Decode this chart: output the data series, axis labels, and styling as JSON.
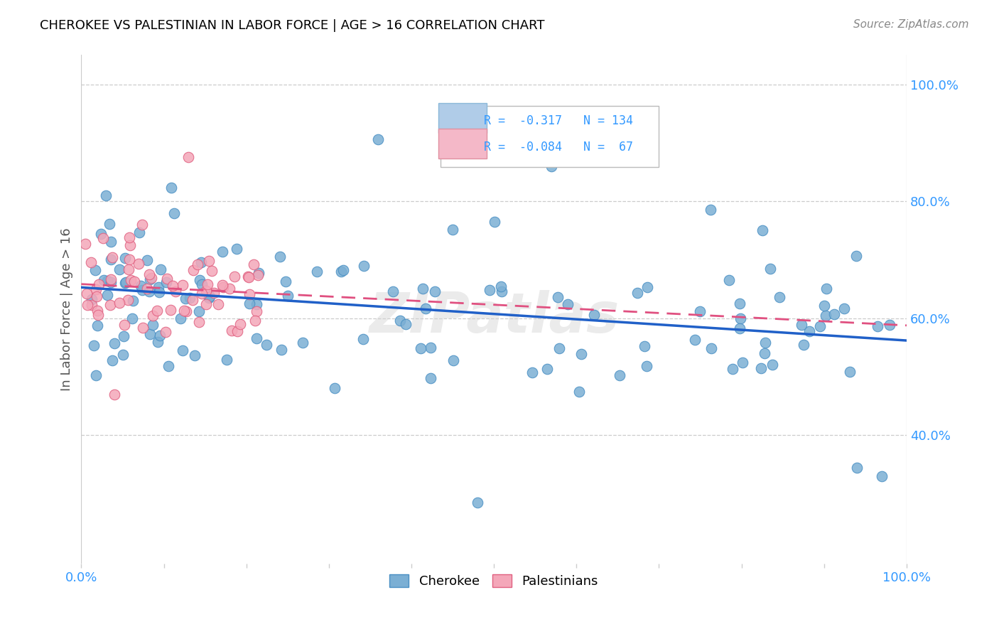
{
  "title": "CHEROKEE VS PALESTINIAN IN LABOR FORCE | AGE > 16 CORRELATION CHART",
  "source": "Source: ZipAtlas.com",
  "ylabel": "In Labor Force | Age > 16",
  "xlim": [
    0.0,
    1.0
  ],
  "ylim": [
    0.18,
    1.05
  ],
  "cherokee_color": "#7bafd4",
  "cherokee_edge_color": "#4a90c4",
  "palestinian_color": "#f4a7b9",
  "palestinian_edge_color": "#e06080",
  "cherokee_line_color": "#2060c8",
  "palestinian_line_color": "#e05080",
  "legend_box_cherokee": "#b0cce8",
  "legend_box_cherokee_edge": "#8ab8d8",
  "legend_box_palestinian": "#f4b8c8",
  "legend_box_palestinian_edge": "#e090a0",
  "R_cherokee": -0.317,
  "N_cherokee": 134,
  "R_palestinian": -0.084,
  "N_palestinian": 67,
  "watermark": "ZIPatlas",
  "ytick_values": [
    0.4,
    0.6,
    0.8,
    1.0
  ],
  "ytick_labels": [
    "40.0%",
    "60.0%",
    "80.0%",
    "100.0%"
  ],
  "grid_color": "#cccccc",
  "tick_color": "#3399ff",
  "title_fontsize": 13,
  "source_fontsize": 11,
  "axis_fontsize": 13,
  "legend_fontsize": 13
}
